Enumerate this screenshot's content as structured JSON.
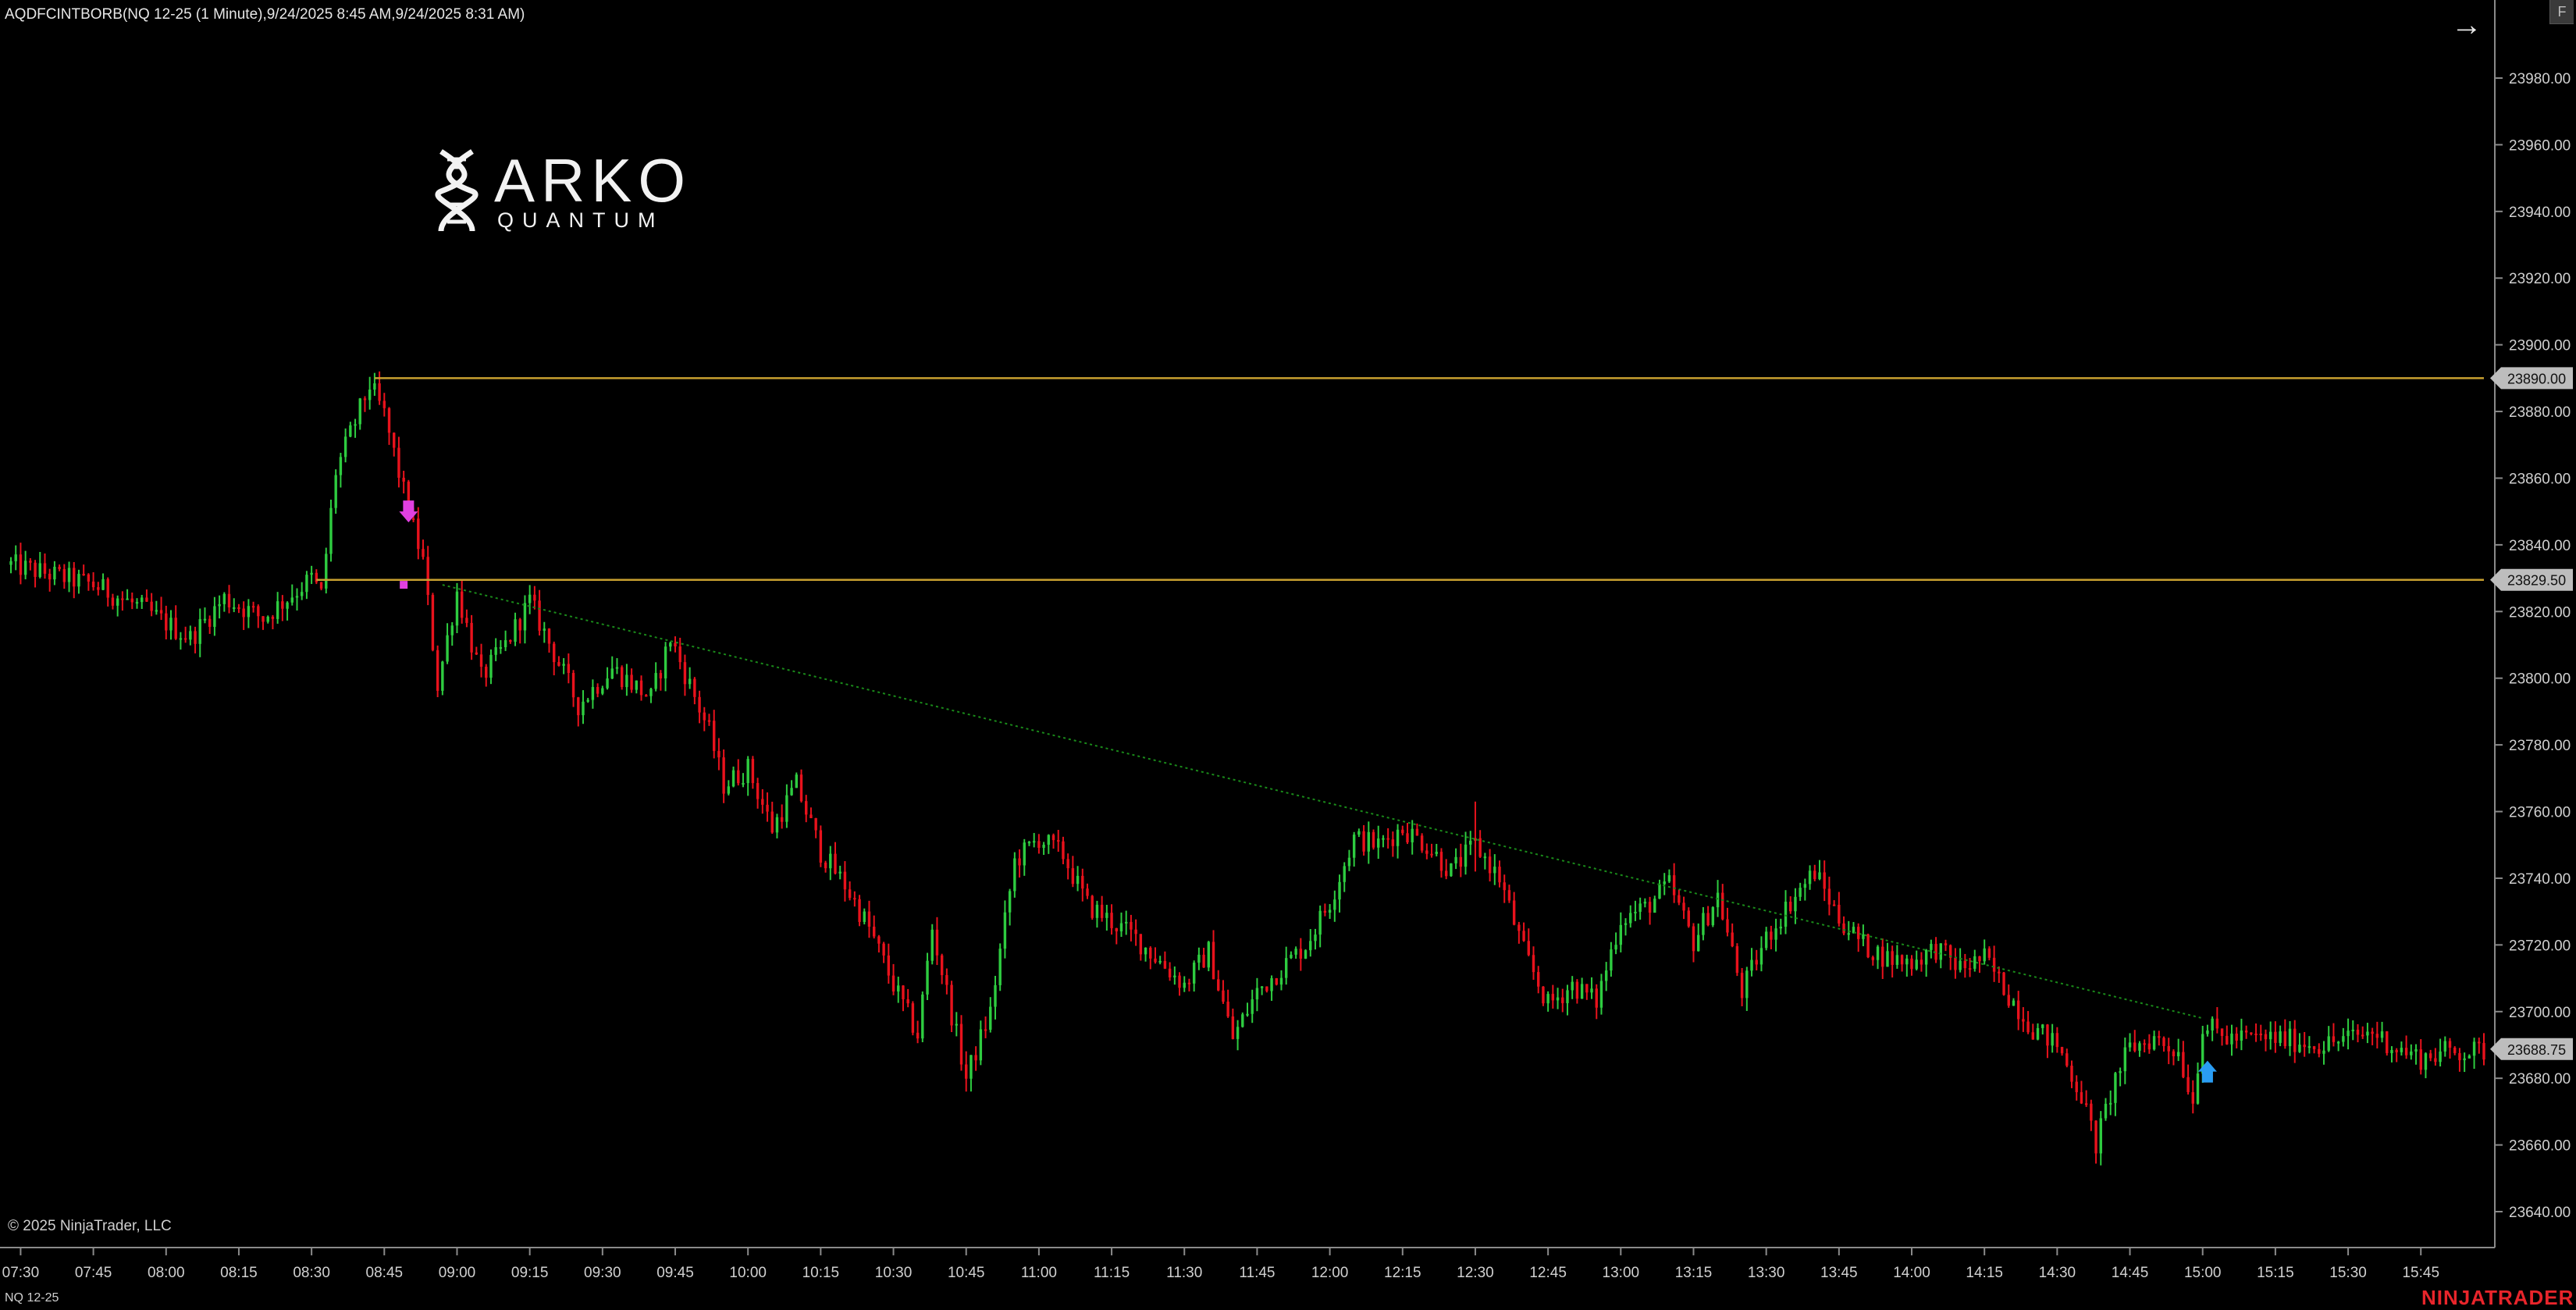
{
  "header": {
    "indicator_title": "AQDFCINTBORB(NQ 12-25 (1 Minute),9/24/2025 8:45 AM,9/24/2025 8:31 AM)"
  },
  "toolbar": {
    "nav_arrow_icon": "arrow-right-icon",
    "corner_button_label": "F"
  },
  "logo": {
    "word": "ARKO",
    "sub": "QUANTUM",
    "icon": "dna-helix-icon"
  },
  "footer": {
    "copyright": "© 2025 NinjaTrader, LLC",
    "instrument": "NQ 12-25",
    "brand": "NINJATRADER"
  },
  "colors": {
    "background": "#000000",
    "up_bar": "#2ecc40",
    "down_bar": "#e8121c",
    "range_line": "#c8a030",
    "trend_line": "#1a8a1a",
    "sell_marker": "#e040e0",
    "buy_marker": "#2a9df4",
    "brand": "#e8252b"
  },
  "chart_data": {
    "type": "candlestick",
    "instrument": "NQ 12-25",
    "interval": "1 Minute",
    "ylim": [
      23630,
      23995
    ],
    "y_ticks": [
      23640,
      23660,
      23680,
      23700,
      23720,
      23740,
      23760,
      23780,
      23800,
      23820,
      23840,
      23860,
      23880,
      23900,
      23920,
      23940,
      23960,
      23980
    ],
    "y_tick_labels": [
      "23640.00",
      "23660.00",
      "23680.00",
      "23700.00",
      "23720.00",
      "23740.00",
      "23760.00",
      "23780.00",
      "23800.00",
      "23820.00",
      "23840.00",
      "23860.00",
      "23880.00",
      "23900.00",
      "23920.00",
      "23940.00",
      "23960.00",
      "23980.00"
    ],
    "x_ticks": [
      "07:30",
      "07:45",
      "08:00",
      "08:15",
      "08:30",
      "08:45",
      "09:00",
      "09:15",
      "09:30",
      "09:45",
      "10:00",
      "10:15",
      "10:30",
      "10:45",
      "11:00",
      "11:15",
      "11:30",
      "11:45",
      "12:00",
      "12:15",
      "12:30",
      "12:45",
      "13:00",
      "13:15",
      "13:30",
      "13:45",
      "14:00",
      "14:15",
      "14:30",
      "14:45",
      "15:00",
      "15:15",
      "15:30",
      "15:45"
    ],
    "time_range": [
      "07:28",
      "15:58"
    ],
    "price_path": [
      [
        "07:28",
        23834
      ],
      [
        "07:45",
        23828
      ],
      [
        "07:55",
        23821
      ],
      [
        "08:05",
        23812
      ],
      [
        "08:12",
        23824
      ],
      [
        "08:20",
        23818
      ],
      [
        "08:30",
        23830
      ],
      [
        "08:32",
        23825
      ],
      [
        "08:35",
        23862
      ],
      [
        "08:42",
        23888
      ],
      [
        "08:45",
        23879
      ],
      [
        "08:50",
        23850
      ],
      [
        "08:53",
        23835
      ],
      [
        "08:56",
        23798
      ],
      [
        "09:00",
        23826
      ],
      [
        "09:05",
        23800
      ],
      [
        "09:10",
        23810
      ],
      [
        "09:15",
        23823
      ],
      [
        "09:25",
        23792
      ],
      [
        "09:32",
        23803
      ],
      [
        "09:40",
        23794
      ],
      [
        "09:44",
        23812
      ],
      [
        "09:52",
        23784
      ],
      [
        "09:55",
        23768
      ],
      [
        "10:00",
        23773
      ],
      [
        "10:05",
        23755
      ],
      [
        "10:10",
        23768
      ],
      [
        "10:15",
        23748
      ],
      [
        "10:20",
        23738
      ],
      [
        "10:25",
        23725
      ],
      [
        "10:30",
        23708
      ],
      [
        "10:35",
        23693
      ],
      [
        "10:38",
        23725
      ],
      [
        "10:45",
        23680
      ],
      [
        "10:50",
        23700
      ],
      [
        "10:55",
        23745
      ],
      [
        "11:00",
        23752
      ],
      [
        "11:05",
        23747
      ],
      [
        "11:10",
        23732
      ],
      [
        "11:20",
        23722
      ],
      [
        "11:30",
        23708
      ],
      [
        "11:35",
        23718
      ],
      [
        "11:40",
        23692
      ],
      [
        "11:45",
        23706
      ],
      [
        "11:55",
        23720
      ],
      [
        "12:00",
        23733
      ],
      [
        "12:05",
        23752
      ],
      [
        "12:10",
        23750
      ],
      [
        "12:15",
        23755
      ],
      [
        "12:20",
        23750
      ],
      [
        "12:25",
        23742
      ],
      [
        "12:30",
        23750
      ],
      [
        "12:35",
        23740
      ],
      [
        "12:40",
        23718
      ],
      [
        "12:45",
        23702
      ],
      [
        "12:50",
        23708
      ],
      [
        "12:55",
        23703
      ],
      [
        "13:00",
        23728
      ],
      [
        "13:05",
        23731
      ],
      [
        "13:10",
        23738
      ],
      [
        "13:15",
        23721
      ],
      [
        "13:20",
        23735
      ],
      [
        "13:25",
        23706
      ],
      [
        "13:30",
        23722
      ],
      [
        "13:35",
        23733
      ],
      [
        "13:40",
        23742
      ],
      [
        "13:45",
        23728
      ],
      [
        "13:50",
        23720
      ],
      [
        "13:55",
        23716
      ],
      [
        "14:00",
        23715
      ],
      [
        "14:05",
        23719
      ],
      [
        "14:10",
        23713
      ],
      [
        "14:15",
        23716
      ],
      [
        "14:20",
        23705
      ],
      [
        "14:25",
        23695
      ],
      [
        "14:30",
        23690
      ],
      [
        "14:35",
        23675
      ],
      [
        "14:38",
        23660
      ],
      [
        "14:42",
        23680
      ],
      [
        "14:45",
        23689
      ],
      [
        "14:50",
        23692
      ],
      [
        "14:55",
        23688
      ],
      [
        "14:58",
        23673
      ],
      [
        "15:00",
        23696
      ],
      [
        "15:05",
        23692
      ],
      [
        "15:15",
        23692
      ],
      [
        "15:25",
        23690
      ],
      [
        "15:35",
        23694
      ],
      [
        "15:40",
        23689
      ],
      [
        "15:45",
        23686
      ],
      [
        "15:50",
        23688
      ],
      [
        "15:58",
        23688
      ]
    ],
    "special_bars": [
      {
        "time": "12:30",
        "high": 23763,
        "low": 23742
      }
    ],
    "range_lines": [
      {
        "label": "23890.00",
        "price": 23890,
        "start": "08:43",
        "end": "15:58"
      },
      {
        "label": "23829.50",
        "price": 23829.5,
        "start": "08:31",
        "end": "15:58"
      }
    ],
    "trend_line": {
      "start": [
        "08:57",
        23828
      ],
      "end": [
        "15:00",
        23698
      ]
    },
    "markers": [
      {
        "kind": "sell-arrow",
        "time": "08:50",
        "price": 23850
      },
      {
        "kind": "sell-dot",
        "time": "08:49",
        "price": 23828
      },
      {
        "kind": "buy-arrow",
        "time": "15:01",
        "price": 23682
      }
    ],
    "last_price": {
      "label": "23688.75",
      "value": 23688.75
    }
  }
}
